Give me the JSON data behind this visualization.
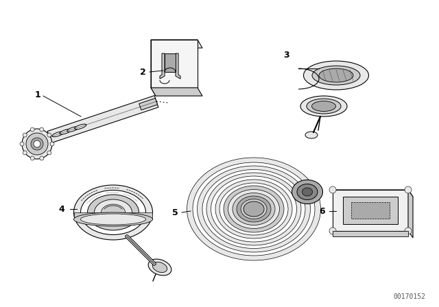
{
  "background_color": "#ffffff",
  "figure_width": 6.4,
  "figure_height": 4.48,
  "dpi": 100,
  "watermark": "00170152",
  "line_color": "#000000",
  "fill_light": "#e8e8e8",
  "fill_mid": "#cccccc",
  "fill_dark": "#aaaaaa"
}
